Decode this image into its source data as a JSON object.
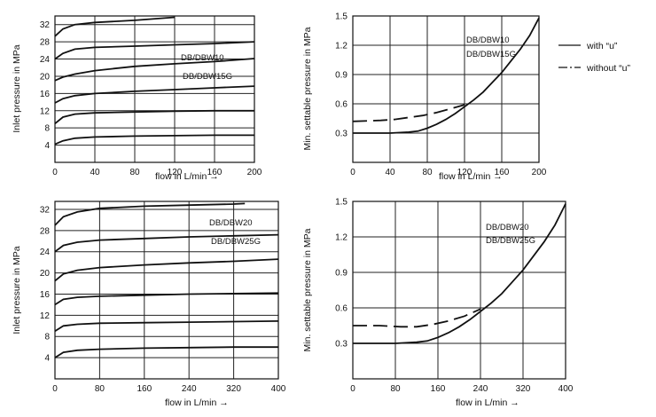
{
  "legend": {
    "with": "with  “u”",
    "without": "without  “u”"
  },
  "chart_data": [
    {
      "type": "line",
      "xlabel": "flow in L/min →",
      "ylabel": "Inlet pressure in MPa",
      "xlim": [
        0,
        200
      ],
      "ylim": [
        0,
        34
      ],
      "xticks": [
        0,
        40,
        80,
        120,
        160,
        200
      ],
      "yticks": [
        4,
        8,
        12,
        16,
        20,
        24,
        28,
        32
      ],
      "grid": true,
      "annotations": [
        "DB/DBW10",
        "DB/DBW15G"
      ],
      "series": [
        {
          "x": [
            0,
            8,
            20,
            40,
            80,
            120
          ],
          "y": [
            29.3,
            31.0,
            32.0,
            32.5,
            33.0,
            33.7
          ]
        },
        {
          "x": [
            0,
            8,
            20,
            40,
            80,
            120,
            160,
            200
          ],
          "y": [
            24.0,
            25.3,
            26.3,
            26.7,
            27.0,
            27.3,
            27.6,
            28.0
          ]
        },
        {
          "x": [
            0,
            8,
            20,
            40,
            80,
            120,
            160,
            200
          ],
          "y": [
            19.0,
            19.8,
            20.5,
            21.3,
            22.3,
            22.9,
            23.4,
            24.1
          ]
        },
        {
          "x": [
            0,
            8,
            20,
            40,
            80,
            120,
            160,
            200
          ],
          "y": [
            13.8,
            14.8,
            15.5,
            16.0,
            16.5,
            16.9,
            17.3,
            17.7
          ]
        },
        {
          "x": [
            0,
            8,
            20,
            40,
            80,
            120,
            160,
            200
          ],
          "y": [
            9.0,
            10.5,
            11.2,
            11.5,
            11.7,
            11.9,
            12.0,
            12.0
          ]
        },
        {
          "x": [
            0,
            8,
            20,
            40,
            80,
            120,
            160,
            200
          ],
          "y": [
            4.2,
            5.0,
            5.6,
            5.9,
            6.1,
            6.2,
            6.3,
            6.3
          ]
        }
      ]
    },
    {
      "type": "line",
      "xlabel": "flow in L/min →",
      "ylabel": "Min. settable pressure in MPa",
      "xlim": [
        0,
        200
      ],
      "ylim": [
        0,
        1.5
      ],
      "xticks": [
        0,
        40,
        80,
        120,
        160,
        200
      ],
      "yticks": [
        0.3,
        0.6,
        0.9,
        1.2,
        1.5
      ],
      "grid": true,
      "annotations": [
        "DB/DBW10",
        "DB/DBW15G"
      ],
      "series": [
        {
          "legend": "with",
          "dash": "solid",
          "x": [
            0,
            20,
            40,
            60,
            70,
            80,
            90,
            100,
            110,
            120,
            130,
            140,
            150,
            160,
            170,
            180,
            190,
            200
          ],
          "y": [
            0.3,
            0.3,
            0.3,
            0.31,
            0.32,
            0.35,
            0.39,
            0.44,
            0.5,
            0.57,
            0.64,
            0.72,
            0.82,
            0.92,
            1.04,
            1.16,
            1.3,
            1.48
          ]
        },
        {
          "legend": "without",
          "dash": "dash",
          "x": [
            0,
            30,
            45,
            60,
            75,
            90,
            105,
            120
          ],
          "y": [
            0.42,
            0.43,
            0.44,
            0.46,
            0.48,
            0.51,
            0.55,
            0.59
          ]
        }
      ]
    },
    {
      "type": "line",
      "xlabel": "flow in L/min →",
      "ylabel": "Inlet pressure  in MPa",
      "xlim": [
        0,
        400
      ],
      "ylim": [
        0,
        33.5
      ],
      "xticks": [
        0,
        80,
        160,
        240,
        320,
        400
      ],
      "yticks": [
        4,
        8,
        12,
        16,
        20,
        24,
        28,
        32
      ],
      "grid": true,
      "annotations": [
        "DB/DBW20",
        "DB/DBW25G"
      ],
      "series": [
        {
          "x": [
            0,
            15,
            40,
            80,
            160,
            240,
            320,
            340
          ],
          "y": [
            29.0,
            30.6,
            31.5,
            32.2,
            32.6,
            32.8,
            33.0,
            33.1
          ]
        },
        {
          "x": [
            0,
            15,
            40,
            80,
            160,
            240,
            320,
            400
          ],
          "y": [
            24.0,
            25.2,
            25.8,
            26.2,
            26.5,
            26.8,
            27.0,
            27.2
          ]
        },
        {
          "x": [
            0,
            15,
            40,
            80,
            160,
            240,
            320,
            400
          ],
          "y": [
            18.5,
            19.8,
            20.5,
            21.0,
            21.5,
            21.9,
            22.2,
            22.6
          ]
        },
        {
          "x": [
            0,
            15,
            40,
            80,
            160,
            240,
            320,
            400
          ],
          "y": [
            14.0,
            15.0,
            15.4,
            15.6,
            15.8,
            16.0,
            16.1,
            16.2
          ]
        },
        {
          "x": [
            0,
            15,
            40,
            80,
            160,
            240,
            320,
            400
          ],
          "y": [
            9.0,
            10.0,
            10.3,
            10.5,
            10.6,
            10.7,
            10.8,
            10.9
          ]
        },
        {
          "x": [
            0,
            15,
            40,
            80,
            160,
            240,
            320,
            400
          ],
          "y": [
            4.0,
            5.0,
            5.4,
            5.6,
            5.8,
            5.9,
            6.0,
            6.0
          ]
        }
      ]
    },
    {
      "type": "line",
      "xlabel": "flow in L/min →",
      "ylabel": "Min. settable pressure in MPa",
      "xlim": [
        0,
        400
      ],
      "ylim": [
        0,
        1.5
      ],
      "xticks": [
        0,
        80,
        160,
        240,
        320,
        400
      ],
      "yticks": [
        0.3,
        0.6,
        0.9,
        1.2,
        1.5
      ],
      "grid": true,
      "annotations": [
        "DB/DBW20",
        "DB/DBW25G"
      ],
      "series": [
        {
          "legend": "with",
          "dash": "solid",
          "x": [
            0,
            40,
            80,
            120,
            140,
            160,
            180,
            200,
            220,
            240,
            260,
            280,
            300,
            320,
            340,
            360,
            380,
            400
          ],
          "y": [
            0.3,
            0.3,
            0.3,
            0.31,
            0.32,
            0.35,
            0.39,
            0.44,
            0.5,
            0.57,
            0.64,
            0.72,
            0.82,
            0.92,
            1.04,
            1.16,
            1.3,
            1.48
          ]
        },
        {
          "legend": "without",
          "dash": "dash",
          "x": [
            0,
            50,
            90,
            120,
            150,
            180,
            210,
            240
          ],
          "y": [
            0.45,
            0.45,
            0.44,
            0.44,
            0.46,
            0.49,
            0.53,
            0.59
          ]
        }
      ]
    }
  ]
}
